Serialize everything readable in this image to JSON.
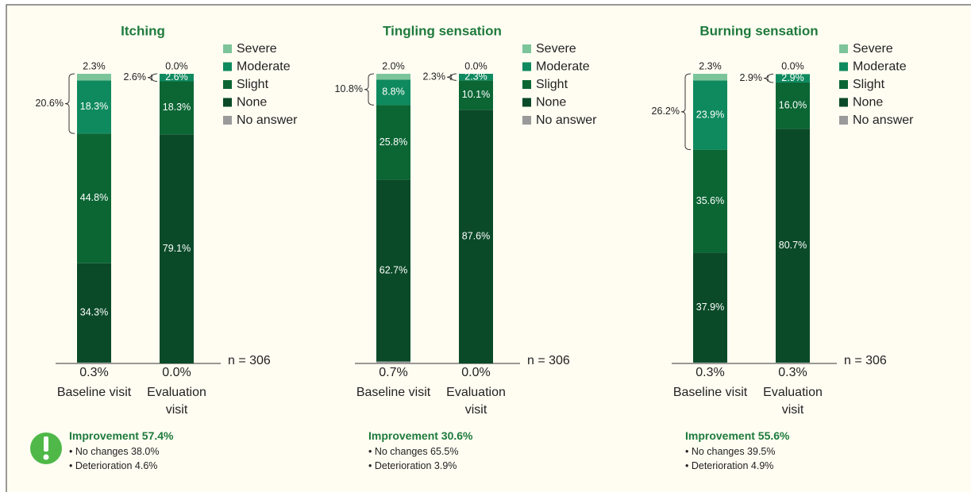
{
  "chart_data": [
    {
      "type": "stacked_bar",
      "title": "Itching",
      "categories": [
        "Baseline visit",
        "Evaluation visit"
      ],
      "ylim": [
        0,
        100
      ],
      "series": [
        {
          "name": "Severe",
          "color": "#7cc49a",
          "values": [
            2.3,
            0.0
          ],
          "value_labels": [
            "2.3%",
            "0.0%"
          ]
        },
        {
          "name": "Moderate",
          "color": "#0f8a5f",
          "values": [
            18.3,
            2.6
          ],
          "value_labels": [
            "18.3%",
            "2.6%"
          ]
        },
        {
          "name": "Slight",
          "color": "#0b6634",
          "values": [
            44.8,
            18.3
          ],
          "value_labels": [
            "44.8%",
            "18.3%"
          ]
        },
        {
          "name": "None",
          "color": "#0a4a28",
          "values": [
            34.3,
            79.1
          ],
          "value_labels": [
            "34.3%",
            "79.1%"
          ]
        },
        {
          "name": "No answer",
          "color": "#9a9a9a",
          "values": [
            0.3,
            0.0
          ],
          "value_labels": [
            "0.3%",
            "0.0%"
          ]
        }
      ],
      "brackets": [
        20.6,
        2.6
      ],
      "bracket_labels": [
        "20.6%",
        "2.6%"
      ],
      "note": "n = 306",
      "summary": {
        "title": "Improvement 57.4%",
        "items": [
          "No changes 38.0%",
          "Deterioration 4.6%"
        ]
      }
    },
    {
      "type": "stacked_bar",
      "title": "Tingling sensation",
      "categories": [
        "Baseline visit",
        "Evaluation visit"
      ],
      "ylim": [
        0,
        100
      ],
      "series": [
        {
          "name": "Severe",
          "color": "#7cc49a",
          "values": [
            2.0,
            0.0
          ],
          "value_labels": [
            "2.0%",
            "0.0%"
          ]
        },
        {
          "name": "Moderate",
          "color": "#0f8a5f",
          "values": [
            8.8,
            2.3
          ],
          "value_labels": [
            "8.8%",
            "2.3%"
          ]
        },
        {
          "name": "Slight",
          "color": "#0b6634",
          "values": [
            25.8,
            10.1
          ],
          "value_labels": [
            "25.8%",
            "10.1%"
          ]
        },
        {
          "name": "None",
          "color": "#0a4a28",
          "values": [
            62.7,
            87.6
          ],
          "value_labels": [
            "62.7%",
            "87.6%"
          ]
        },
        {
          "name": "No answer",
          "color": "#9a9a9a",
          "values": [
            0.7,
            0.0
          ],
          "value_labels": [
            "0.7%",
            "0.0%"
          ]
        }
      ],
      "brackets": [
        10.8,
        2.3
      ],
      "bracket_labels": [
        "10.8%",
        "2.3%"
      ],
      "note": "n = 306",
      "summary": {
        "title": "Improvement 30.6%",
        "items": [
          "No changes 65.5%",
          "Deterioration 3.9%"
        ]
      }
    },
    {
      "type": "stacked_bar",
      "title": "Burning sensation",
      "categories": [
        "Baseline visit",
        "Evaluation visit"
      ],
      "ylim": [
        0,
        100
      ],
      "series": [
        {
          "name": "Severe",
          "color": "#7cc49a",
          "values": [
            2.3,
            0.0
          ],
          "value_labels": [
            "2.3%",
            "0.0%"
          ]
        },
        {
          "name": "Moderate",
          "color": "#0f8a5f",
          "values": [
            23.9,
            2.9
          ],
          "value_labels": [
            "23.9%",
            "2.9%"
          ]
        },
        {
          "name": "Slight",
          "color": "#0b6634",
          "values": [
            35.6,
            16.0
          ],
          "value_labels": [
            "35.6%",
            "16.0%"
          ]
        },
        {
          "name": "None",
          "color": "#0a4a28",
          "values": [
            37.9,
            80.7
          ],
          "value_labels": [
            "37.9%",
            "80.7%"
          ]
        },
        {
          "name": "No answer",
          "color": "#9a9a9a",
          "values": [
            0.3,
            0.3
          ],
          "value_labels": [
            "0.3%",
            "0.3%"
          ]
        }
      ],
      "brackets": [
        26.2,
        2.9
      ],
      "bracket_labels": [
        "26.2%",
        "2.9%"
      ],
      "note": "n = 306",
      "summary": {
        "title": "Improvement 55.6%",
        "items": [
          "No changes 39.5%",
          "Deterioration 4.9%"
        ]
      }
    }
  ]
}
